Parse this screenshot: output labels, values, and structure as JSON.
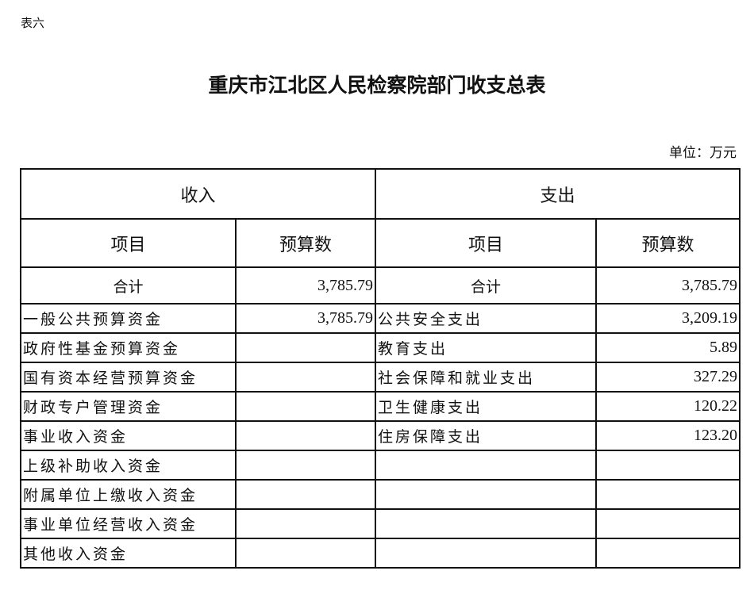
{
  "table_label": "表六",
  "title": "重庆市江北区人民检察院部门收支总表",
  "unit": "单位：万元",
  "headers": {
    "income": "收入",
    "expense": "支出",
    "item": "项目",
    "budget": "预算数"
  },
  "total": {
    "label": "合计",
    "income": "3,785.79",
    "expense": "3,785.79"
  },
  "rows": [
    {
      "income_item": "一般公共预算资金",
      "income_value": "3,785.79",
      "expense_item": "公共安全支出",
      "expense_value": "3,209.19"
    },
    {
      "income_item": "政府性基金预算资金",
      "income_value": "",
      "expense_item": "教育支出",
      "expense_value": "5.89"
    },
    {
      "income_item": "国有资本经营预算资金",
      "income_value": "",
      "expense_item": "社会保障和就业支出",
      "expense_value": "327.29"
    },
    {
      "income_item": "财政专户管理资金",
      "income_value": "",
      "expense_item": "卫生健康支出",
      "expense_value": "120.22"
    },
    {
      "income_item": "事业收入资金",
      "income_value": "",
      "expense_item": "住房保障支出",
      "expense_value": "123.20"
    },
    {
      "income_item": "上级补助收入资金",
      "income_value": "",
      "expense_item": "",
      "expense_value": ""
    },
    {
      "income_item": "附属单位上缴收入资金",
      "income_value": "",
      "expense_item": "",
      "expense_value": ""
    },
    {
      "income_item": "事业单位经营收入资金",
      "income_value": "",
      "expense_item": "",
      "expense_value": ""
    },
    {
      "income_item": "其他收入资金",
      "income_value": "",
      "expense_item": "",
      "expense_value": ""
    }
  ]
}
